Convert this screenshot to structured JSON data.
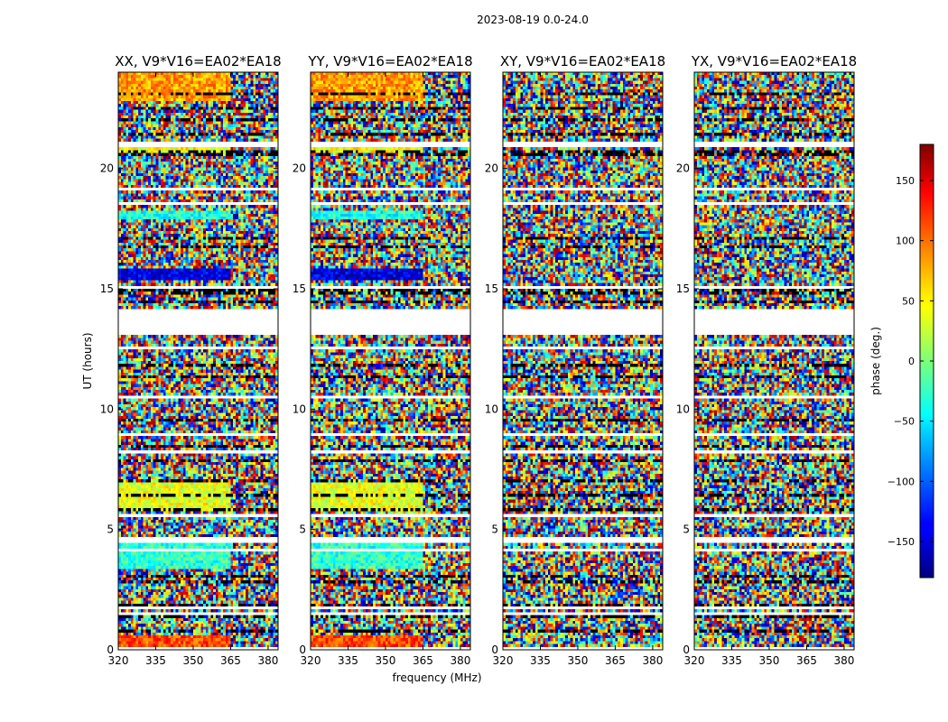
{
  "chart_data": {
    "type": "heatmap",
    "suptitle": "2023-08-19 0.0-24.0",
    "xlabel": "frequency (MHz)",
    "ylabel": "UT (hours)",
    "xlim": [
      320,
      384
    ],
    "ylim": [
      0,
      24
    ],
    "x_ticks": [
      320,
      335,
      350,
      365,
      380
    ],
    "y_ticks": [
      0,
      5,
      10,
      15,
      20
    ],
    "colorbar": {
      "label": "phase (deg.)",
      "range": [
        -180,
        180
      ],
      "ticks": [
        150,
        100,
        50,
        0,
        -50,
        -100,
        -150
      ],
      "tick_labels": [
        "150",
        "100",
        "50",
        "0",
        "−50",
        "−100",
        "−150"
      ],
      "colormap": "jet"
    },
    "panels": [
      {
        "title": "XX, V9*V16=EA02*EA18",
        "pol": "XX",
        "coherence": "high"
      },
      {
        "title": "YY, V9*V16=EA02*EA18",
        "pol": "YY",
        "coherence": "high"
      },
      {
        "title": "XY, V9*V16=EA02*EA18",
        "pol": "XY",
        "coherence": "noise"
      },
      {
        "title": "YX, V9*V16=EA02*EA18",
        "pol": "YX",
        "coherence": "noise"
      }
    ],
    "data_gaps_hours": [
      [
        13.0,
        14.2
      ]
    ]
  }
}
